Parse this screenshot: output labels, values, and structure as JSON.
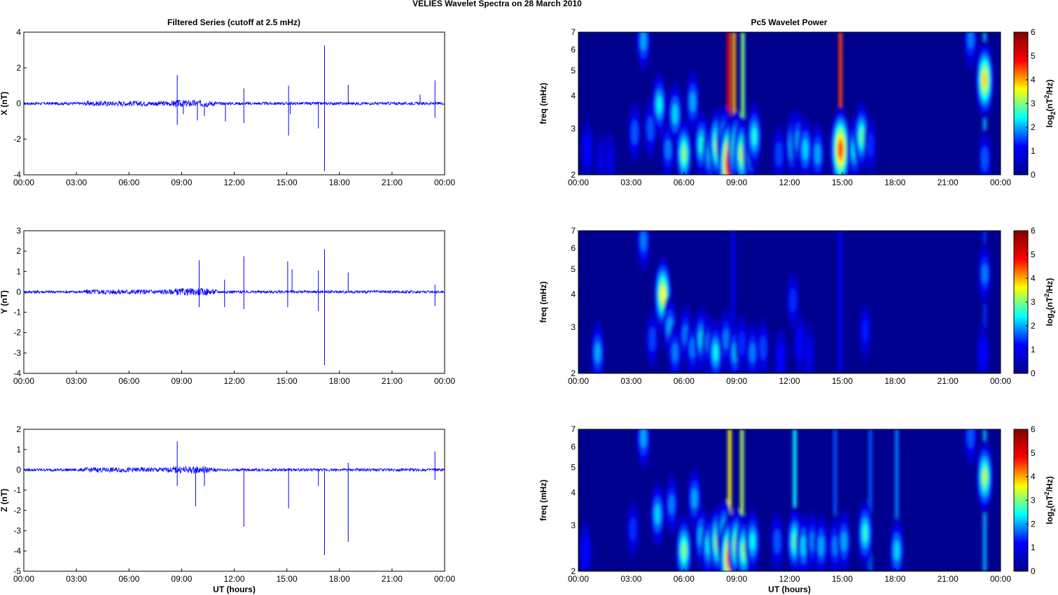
{
  "figure": {
    "title": "VELIES Wavelet Spectra on 28 March     2010",
    "left_title": "Filtered Series (cutoff at 2.5 mHz)",
    "right_title": "Pc5 Wavelet Power",
    "x_label": "UT (hours)",
    "freq_label": "freq (mHz)",
    "colorbar_label": "log2(nT2/Hz)",
    "x_ticks": [
      "00:00",
      "03:00",
      "06:00",
      "09:00",
      "12:00",
      "15:00",
      "18:00",
      "21:00",
      "00:00"
    ]
  },
  "colors": {
    "trace": "#0000ff",
    "colormap": [
      "#00008f",
      "#0000ff",
      "#00ffff",
      "#ffff00",
      "#ff0000",
      "#800000"
    ]
  },
  "chart_data": [
    {
      "type": "line",
      "component": "X",
      "ylabel": "X (nT)",
      "xlim": [
        0,
        24
      ],
      "ylim": [
        -4,
        4
      ],
      "yticks": [
        -4,
        -2,
        0,
        2,
        4
      ],
      "noise_amplitude": 0.08,
      "spikes": [
        {
          "x": 8.75,
          "y": 1.6
        },
        {
          "x": 8.75,
          "y": -1.2
        },
        {
          "x": 9.1,
          "y": -0.6
        },
        {
          "x": 9.9,
          "y": -0.95
        },
        {
          "x": 10.3,
          "y": -0.7
        },
        {
          "x": 11.5,
          "y": -1.0
        },
        {
          "x": 12.55,
          "y": 0.85
        },
        {
          "x": 12.55,
          "y": -1.1
        },
        {
          "x": 15.1,
          "y": 1.0
        },
        {
          "x": 15.1,
          "y": -1.8
        },
        {
          "x": 15.2,
          "y": -0.6
        },
        {
          "x": 16.8,
          "y": -1.4
        },
        {
          "x": 17.15,
          "y": 3.25
        },
        {
          "x": 17.15,
          "y": -3.8
        },
        {
          "x": 18.5,
          "y": 1.05
        },
        {
          "x": 22.6,
          "y": 0.5
        },
        {
          "x": 23.45,
          "y": 1.3
        },
        {
          "x": 23.45,
          "y": -0.8
        }
      ]
    },
    {
      "type": "line",
      "component": "Y",
      "ylabel": "Y (nT)",
      "xlim": [
        0,
        24
      ],
      "ylim": [
        -4,
        3
      ],
      "yticks": [
        -4,
        -3,
        -2,
        -1,
        0,
        1,
        2,
        3
      ],
      "noise_amplitude": 0.07,
      "spikes": [
        {
          "x": 10.0,
          "y": 1.55
        },
        {
          "x": 10.0,
          "y": -0.75
        },
        {
          "x": 11.45,
          "y": 0.6
        },
        {
          "x": 11.45,
          "y": -0.75
        },
        {
          "x": 12.55,
          "y": 1.75
        },
        {
          "x": 12.55,
          "y": -0.85
        },
        {
          "x": 15.05,
          "y": 1.5
        },
        {
          "x": 15.05,
          "y": -0.75
        },
        {
          "x": 15.3,
          "y": 1.1
        },
        {
          "x": 16.8,
          "y": 1.05
        },
        {
          "x": 16.8,
          "y": -0.95
        },
        {
          "x": 17.15,
          "y": 2.1
        },
        {
          "x": 17.15,
          "y": -3.6
        },
        {
          "x": 18.5,
          "y": 0.95
        },
        {
          "x": 23.45,
          "y": 0.35
        },
        {
          "x": 23.45,
          "y": -0.7
        }
      ]
    },
    {
      "type": "line",
      "component": "Z",
      "ylabel": "Z (nT)",
      "xlim": [
        0,
        24
      ],
      "ylim": [
        -5,
        2
      ],
      "yticks": [
        -5,
        -4,
        -3,
        -2,
        -1,
        0,
        1,
        2
      ],
      "noise_amplitude": 0.07,
      "spikes": [
        {
          "x": 8.75,
          "y": 1.4
        },
        {
          "x": 8.75,
          "y": -0.8
        },
        {
          "x": 9.8,
          "y": -1.8
        },
        {
          "x": 10.3,
          "y": -0.8
        },
        {
          "x": 12.55,
          "y": -2.8
        },
        {
          "x": 15.1,
          "y": -1.9
        },
        {
          "x": 16.8,
          "y": -0.8
        },
        {
          "x": 17.15,
          "y": -4.2
        },
        {
          "x": 18.5,
          "y": -3.55
        },
        {
          "x": 18.5,
          "y": 0.35
        },
        {
          "x": 23.45,
          "y": 0.9
        },
        {
          "x": 23.45,
          "y": -0.5
        }
      ]
    },
    {
      "type": "heatmap",
      "component": "X",
      "ylabel": "freq (mHz)",
      "yscale": "log",
      "ylim": [
        2,
        7
      ],
      "yticks": [
        2,
        3,
        4,
        5,
        6,
        7
      ],
      "clim": [
        0,
        6
      ],
      "cticks": [
        0,
        1,
        2,
        3,
        4,
        5,
        6
      ],
      "blobs": [
        {
          "t": 0.5,
          "f": 2.5,
          "v": 1.2
        },
        {
          "t": 1.3,
          "f": 2.3,
          "v": 0.9
        },
        {
          "t": 1.8,
          "f": 2.3,
          "v": 0.9
        },
        {
          "t": 3.2,
          "f": 2.9,
          "v": 1.6
        },
        {
          "t": 3.7,
          "f": 6.5,
          "v": 2.0
        },
        {
          "t": 4.1,
          "f": 3.0,
          "v": 1.6
        },
        {
          "t": 4.6,
          "f": 3.7,
          "v": 2.4
        },
        {
          "t": 5.1,
          "f": 2.5,
          "v": 1.8
        },
        {
          "t": 5.5,
          "f": 3.4,
          "v": 2.2
        },
        {
          "t": 6.0,
          "f": 2.4,
          "v": 3.0
        },
        {
          "t": 6.5,
          "f": 3.8,
          "v": 2.0
        },
        {
          "t": 7.0,
          "f": 2.6,
          "v": 2.5
        },
        {
          "t": 7.5,
          "f": 2.4,
          "v": 2.4
        },
        {
          "t": 7.9,
          "f": 2.6,
          "v": 3.4
        },
        {
          "t": 8.3,
          "f": 2.7,
          "v": 2.8
        },
        {
          "t": 8.6,
          "f": 2.2,
          "v": 5.6
        },
        {
          "t": 9.0,
          "f": 2.5,
          "v": 3.6
        },
        {
          "t": 9.3,
          "f": 2.4,
          "v": 3.2
        },
        {
          "t": 9.8,
          "f": 2.5,
          "v": 2.6
        },
        {
          "t": 10.0,
          "f": 2.8,
          "v": 2.5
        },
        {
          "t": 11.4,
          "f": 2.4,
          "v": 1.5
        },
        {
          "t": 12.2,
          "f": 2.6,
          "v": 2.5
        },
        {
          "t": 12.5,
          "f": 2.7,
          "v": 2.0
        },
        {
          "t": 12.9,
          "f": 2.5,
          "v": 2.2
        },
        {
          "t": 13.6,
          "f": 2.4,
          "v": 2.0
        },
        {
          "t": 14.6,
          "f": 2.5,
          "v": 1.8
        },
        {
          "t": 14.9,
          "f": 2.5,
          "v": 4.6
        },
        {
          "t": 15.7,
          "f": 2.5,
          "v": 2.4
        },
        {
          "t": 16.1,
          "f": 2.8,
          "v": 2.8
        },
        {
          "t": 16.6,
          "f": 2.6,
          "v": 1.4
        },
        {
          "t": 22.3,
          "f": 6.6,
          "v": 1.8
        },
        {
          "t": 23.1,
          "f": 2.3,
          "v": 1.6
        },
        {
          "t": 23.1,
          "f": 4.6,
          "v": 3.8
        }
      ],
      "streaks": [
        {
          "t": 8.55,
          "v": 4.8
        },
        {
          "t": 8.85,
          "v": 4.0
        },
        {
          "t": 9.35,
          "v": 3.0
        },
        {
          "t": 14.9,
          "v": 4.5
        },
        {
          "t": 23.1,
          "v": 2.0
        }
      ]
    },
    {
      "type": "heatmap",
      "component": "Y",
      "ylabel": "freq (mHz)",
      "yscale": "log",
      "ylim": [
        2,
        7
      ],
      "yticks": [
        2,
        3,
        4,
        5,
        6,
        7
      ],
      "clim": [
        0,
        6
      ],
      "cticks": [
        0,
        1,
        2,
        3,
        4,
        5,
        6
      ],
      "blobs": [
        {
          "t": 1.1,
          "f": 2.4,
          "v": 2.0
        },
        {
          "t": 3.7,
          "f": 6.4,
          "v": 1.8
        },
        {
          "t": 4.2,
          "f": 2.7,
          "v": 1.5
        },
        {
          "t": 4.8,
          "f": 4.0,
          "v": 3.6
        },
        {
          "t": 5.2,
          "f": 3.0,
          "v": 2.0
        },
        {
          "t": 5.5,
          "f": 2.4,
          "v": 1.8
        },
        {
          "t": 6.1,
          "f": 2.8,
          "v": 1.8
        },
        {
          "t": 6.5,
          "f": 2.5,
          "v": 1.8
        },
        {
          "t": 7.0,
          "f": 2.7,
          "v": 2.3
        },
        {
          "t": 7.4,
          "f": 2.6,
          "v": 1.8
        },
        {
          "t": 7.8,
          "f": 2.4,
          "v": 2.4
        },
        {
          "t": 8.4,
          "f": 2.7,
          "v": 1.8
        },
        {
          "t": 8.9,
          "f": 2.4,
          "v": 2.0
        },
        {
          "t": 9.3,
          "f": 2.6,
          "v": 1.4
        },
        {
          "t": 9.9,
          "f": 2.4,
          "v": 1.8
        },
        {
          "t": 10.5,
          "f": 2.5,
          "v": 1.5
        },
        {
          "t": 11.5,
          "f": 2.3,
          "v": 1.2
        },
        {
          "t": 12.2,
          "f": 3.8,
          "v": 1.4
        },
        {
          "t": 12.6,
          "f": 2.6,
          "v": 1.2
        },
        {
          "t": 13.1,
          "f": 2.4,
          "v": 1.0
        },
        {
          "t": 16.3,
          "f": 2.9,
          "v": 1.3
        },
        {
          "t": 23.0,
          "f": 2.4,
          "v": 1.2
        },
        {
          "t": 23.1,
          "f": 4.8,
          "v": 1.8
        }
      ],
      "streaks": [
        {
          "t": 8.8,
          "v": 1.2
        },
        {
          "t": 14.9,
          "v": 1.2
        },
        {
          "t": 23.1,
          "v": 1.4
        }
      ]
    },
    {
      "type": "heatmap",
      "component": "Z",
      "ylabel": "freq (mHz)",
      "yscale": "log",
      "ylim": [
        2,
        7
      ],
      "yticks": [
        2,
        3,
        4,
        5,
        6,
        7
      ],
      "clim": [
        0,
        6
      ],
      "cticks": [
        0,
        1,
        2,
        3,
        4,
        5,
        6
      ],
      "blobs": [
        {
          "t": 0.4,
          "f": 2.4,
          "v": 1.2
        },
        {
          "t": 3.1,
          "f": 2.9,
          "v": 1.4
        },
        {
          "t": 3.7,
          "f": 6.5,
          "v": 2.0
        },
        {
          "t": 4.5,
          "f": 3.3,
          "v": 2.2
        },
        {
          "t": 5.3,
          "f": 3.6,
          "v": 1.8
        },
        {
          "t": 6.0,
          "f": 2.4,
          "v": 3.0
        },
        {
          "t": 6.6,
          "f": 3.8,
          "v": 2.0
        },
        {
          "t": 7.0,
          "f": 2.7,
          "v": 2.2
        },
        {
          "t": 7.4,
          "f": 2.5,
          "v": 2.4
        },
        {
          "t": 7.9,
          "f": 2.6,
          "v": 3.2
        },
        {
          "t": 8.3,
          "f": 2.8,
          "v": 2.6
        },
        {
          "t": 8.6,
          "f": 2.25,
          "v": 4.8
        },
        {
          "t": 9.0,
          "f": 2.5,
          "v": 3.4
        },
        {
          "t": 9.4,
          "f": 2.4,
          "v": 3.0
        },
        {
          "t": 9.9,
          "f": 2.6,
          "v": 2.4
        },
        {
          "t": 11.3,
          "f": 2.6,
          "v": 1.6
        },
        {
          "t": 12.3,
          "f": 2.6,
          "v": 2.8
        },
        {
          "t": 12.8,
          "f": 2.5,
          "v": 2.2
        },
        {
          "t": 13.3,
          "f": 2.6,
          "v": 1.8
        },
        {
          "t": 13.8,
          "f": 2.5,
          "v": 2.0
        },
        {
          "t": 14.6,
          "f": 2.5,
          "v": 1.8
        },
        {
          "t": 15.1,
          "f": 2.6,
          "v": 2.0
        },
        {
          "t": 16.3,
          "f": 2.8,
          "v": 2.6
        },
        {
          "t": 18.1,
          "f": 2.4,
          "v": 2.2
        },
        {
          "t": 22.3,
          "f": 6.6,
          "v": 1.6
        },
        {
          "t": 23.1,
          "f": 4.6,
          "v": 3.2
        }
      ],
      "streaks": [
        {
          "t": 8.6,
          "v": 3.6
        },
        {
          "t": 9.3,
          "v": 3.2
        },
        {
          "t": 12.3,
          "v": 2.4
        },
        {
          "t": 14.6,
          "v": 1.6
        },
        {
          "t": 16.6,
          "v": 1.6
        },
        {
          "t": 18.1,
          "v": 1.8
        },
        {
          "t": 23.1,
          "v": 2.0
        }
      ]
    }
  ]
}
